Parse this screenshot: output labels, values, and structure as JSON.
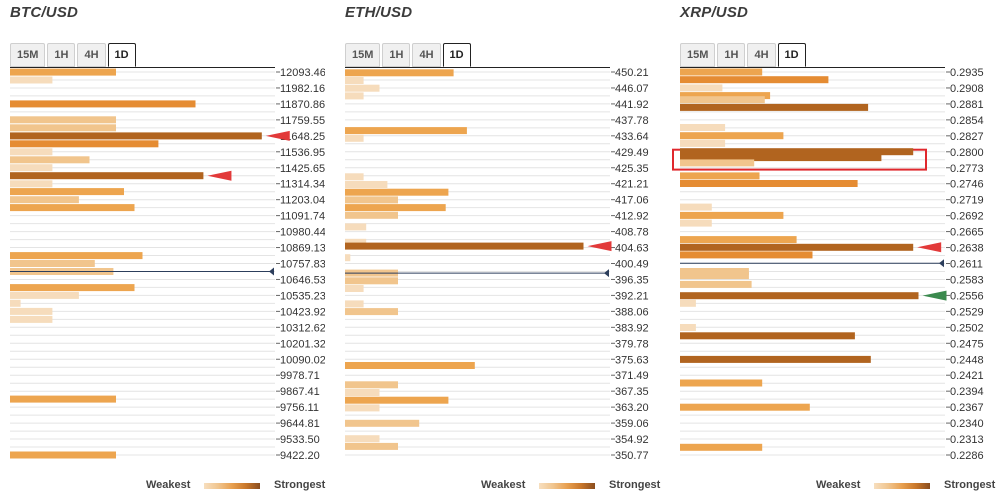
{
  "legend": {
    "weakest": "Weakest",
    "strongest": "Strongest"
  },
  "colors": {
    "c1": "#f6dcbc",
    "c2": "#f1c58d",
    "c3": "#eda54f",
    "c4": "#e58c33",
    "c5": "#b1641f",
    "red_marker": "#e23a3a",
    "green_marker": "#3b8a4e",
    "navy_marker": "#2c3e5c",
    "highlight": "#e0282d"
  },
  "chart_data": [
    {
      "type": "bar",
      "title": "BTC/USD",
      "timeframes": [
        "15M",
        "1H",
        "4H",
        "1D"
      ],
      "active_timeframe": "1D",
      "price_levels": [
        "12093.46",
        "11982.16",
        "11870.86",
        "11759.55",
        "11648.25",
        "11536.95",
        "11425.65",
        "11314.34",
        "11203.04",
        "11091.74",
        "10980.44",
        "10869.13",
        "10757.83",
        "10646.53",
        "10535.23",
        "10423.92",
        "10312.62",
        "10201.32",
        "10090.02",
        "9978.71",
        "9867.41",
        "9756.11",
        "9644.81",
        "9533.50",
        "9422.20"
      ],
      "strength_scale": [
        0,
        100
      ],
      "bars": [
        {
          "level": 12093,
          "value": 40,
          "tier": 3
        },
        {
          "level": 12038,
          "value": 16,
          "tier": 1
        },
        {
          "level": 11871,
          "value": 70,
          "tier": 4
        },
        {
          "level": 11760,
          "value": 40,
          "tier": 2
        },
        {
          "level": 11704,
          "value": 40,
          "tier": 2
        },
        {
          "level": 11648,
          "value": 95,
          "tier": 5
        },
        {
          "level": 11593,
          "value": 56,
          "tier": 4
        },
        {
          "level": 11537,
          "value": 16,
          "tier": 1
        },
        {
          "level": 11481,
          "value": 30,
          "tier": 2
        },
        {
          "level": 11426,
          "value": 16,
          "tier": 1
        },
        {
          "level": 11370,
          "value": 73,
          "tier": 5
        },
        {
          "level": 11314,
          "value": 16,
          "tier": 1
        },
        {
          "level": 11259,
          "value": 43,
          "tier": 3
        },
        {
          "level": 11203,
          "value": 26,
          "tier": 2
        },
        {
          "level": 11148,
          "value": 47,
          "tier": 3
        },
        {
          "level": 10813,
          "value": 50,
          "tier": 3
        },
        {
          "level": 10758,
          "value": 32,
          "tier": 2
        },
        {
          "level": 10702,
          "value": 39,
          "tier": 2
        },
        {
          "level": 10590,
          "value": 47,
          "tier": 3
        },
        {
          "level": 10535,
          "value": 26,
          "tier": 1
        },
        {
          "level": 10480,
          "value": 4,
          "tier": 1
        },
        {
          "level": 10424,
          "value": 16,
          "tier": 1
        },
        {
          "level": 10368,
          "value": 16,
          "tier": 1
        },
        {
          "level": 9812,
          "value": 40,
          "tier": 3
        },
        {
          "level": 9422,
          "value": 40,
          "tier": 3
        }
      ],
      "markers": [
        {
          "level": 11648,
          "type": "red-arrow"
        },
        {
          "level": 11370,
          "type": "red-arrow"
        },
        {
          "level": 10702,
          "type": "current-price"
        }
      ]
    },
    {
      "type": "bar",
      "title": "ETH/USD",
      "timeframes": [
        "15M",
        "1H",
        "4H",
        "1D"
      ],
      "active_timeframe": "1D",
      "price_levels": [
        "450.21",
        "446.07",
        "441.92",
        "437.78",
        "433.64",
        "429.49",
        "425.35",
        "421.21",
        "417.06",
        "412.92",
        "408.78",
        "404.63",
        "400.49",
        "396.35",
        "392.21",
        "388.06",
        "383.92",
        "379.78",
        "375.63",
        "371.49",
        "367.35",
        "363.20",
        "359.06",
        "354.92",
        "350.77"
      ],
      "strength_scale": [
        0,
        100
      ],
      "bars": [
        {
          "level": 450,
          "value": 41,
          "tier": 3
        },
        {
          "level": 448,
          "value": 7,
          "tier": 1
        },
        {
          "level": 446,
          "value": 13,
          "tier": 1
        },
        {
          "level": 444,
          "value": 7,
          "tier": 1
        },
        {
          "level": 435,
          "value": 46,
          "tier": 3
        },
        {
          "level": 433,
          "value": 7,
          "tier": 1
        },
        {
          "level": 423,
          "value": 7,
          "tier": 1
        },
        {
          "level": 421,
          "value": 16,
          "tier": 1
        },
        {
          "level": 419,
          "value": 39,
          "tier": 3
        },
        {
          "level": 417,
          "value": 20,
          "tier": 2
        },
        {
          "level": 415,
          "value": 38,
          "tier": 3
        },
        {
          "level": 413,
          "value": 20,
          "tier": 2
        },
        {
          "level": 410,
          "value": 8,
          "tier": 1
        },
        {
          "level": 406,
          "value": 8,
          "tier": 1
        },
        {
          "level": 405,
          "value": 90,
          "tier": 5
        },
        {
          "level": 402,
          "value": 2,
          "tier": 1
        },
        {
          "level": 398,
          "value": 20,
          "tier": 2
        },
        {
          "level": 396,
          "value": 20,
          "tier": 2
        },
        {
          "level": 394,
          "value": 7,
          "tier": 1
        },
        {
          "level": 390,
          "value": 7,
          "tier": 1
        },
        {
          "level": 388,
          "value": 20,
          "tier": 2
        },
        {
          "level": 374,
          "value": 49,
          "tier": 3
        },
        {
          "level": 369,
          "value": 20,
          "tier": 2
        },
        {
          "level": 367,
          "value": 13,
          "tier": 1
        },
        {
          "level": 365,
          "value": 39,
          "tier": 3
        },
        {
          "level": 363,
          "value": 13,
          "tier": 1
        },
        {
          "level": 359,
          "value": 28,
          "tier": 2
        },
        {
          "level": 355,
          "value": 13,
          "tier": 1
        },
        {
          "level": 353,
          "value": 20,
          "tier": 2
        }
      ],
      "markers": [
        {
          "level": 405,
          "type": "red-arrow"
        },
        {
          "level": 398,
          "type": "current-price"
        }
      ]
    },
    {
      "type": "bar",
      "title": "XRP/USD",
      "timeframes": [
        "15M",
        "1H",
        "4H",
        "1D"
      ],
      "active_timeframe": "1D",
      "price_levels": [
        "0.2935",
        "0.2908",
        "0.2881",
        "0.2854",
        "0.2827",
        "0.2800",
        "0.2773",
        "0.2746",
        "0.2719",
        "0.2692",
        "0.2665",
        "0.2638",
        "0.2611",
        "0.2583",
        "0.2556",
        "0.2529",
        "0.2502",
        "0.2475",
        "0.2448",
        "0.2421",
        "0.2394",
        "0.2367",
        "0.2340",
        "0.2313",
        "0.2286"
      ],
      "strength_scale": [
        0,
        100
      ],
      "highlight_range": {
        "from": 0.2773,
        "to": 0.28
      },
      "bars": [
        {
          "level": 0.2935,
          "value": 31,
          "tier": 3
        },
        {
          "level": 0.2922,
          "value": 56,
          "tier": 4
        },
        {
          "level": 0.2908,
          "value": 16,
          "tier": 1
        },
        {
          "level": 0.2895,
          "value": 34,
          "tier": 3
        },
        {
          "level": 0.2888,
          "value": 32,
          "tier": 2
        },
        {
          "level": 0.2875,
          "value": 71,
          "tier": 5
        },
        {
          "level": 0.2841,
          "value": 17,
          "tier": 1
        },
        {
          "level": 0.2827,
          "value": 39,
          "tier": 3
        },
        {
          "level": 0.2814,
          "value": 17,
          "tier": 1
        },
        {
          "level": 0.28,
          "value": 88,
          "tier": 5
        },
        {
          "level": 0.279,
          "value": 76,
          "tier": 5
        },
        {
          "level": 0.2781,
          "value": 28,
          "tier": 2
        },
        {
          "level": 0.2759,
          "value": 30,
          "tier": 3
        },
        {
          "level": 0.2746,
          "value": 67,
          "tier": 4
        },
        {
          "level": 0.2706,
          "value": 12,
          "tier": 1
        },
        {
          "level": 0.2692,
          "value": 39,
          "tier": 3
        },
        {
          "level": 0.2679,
          "value": 12,
          "tier": 1
        },
        {
          "level": 0.2651,
          "value": 44,
          "tier": 3
        },
        {
          "level": 0.2638,
          "value": 88,
          "tier": 5
        },
        {
          "level": 0.2625,
          "value": 50,
          "tier": 4
        },
        {
          "level": 0.2597,
          "value": 26,
          "tier": 2
        },
        {
          "level": 0.259,
          "value": 26,
          "tier": 2
        },
        {
          "level": 0.2575,
          "value": 27,
          "tier": 2
        },
        {
          "level": 0.2556,
          "value": 90,
          "tier": 5
        },
        {
          "level": 0.2543,
          "value": 6,
          "tier": 1
        },
        {
          "level": 0.2502,
          "value": 6,
          "tier": 1
        },
        {
          "level": 0.2488,
          "value": 66,
          "tier": 5
        },
        {
          "level": 0.2448,
          "value": 72,
          "tier": 5
        },
        {
          "level": 0.2408,
          "value": 31,
          "tier": 3
        },
        {
          "level": 0.2367,
          "value": 49,
          "tier": 3
        },
        {
          "level": 0.2299,
          "value": 31,
          "tier": 3
        }
      ],
      "markers": [
        {
          "level": 0.2638,
          "type": "red-arrow"
        },
        {
          "level": 0.2611,
          "type": "current-price"
        },
        {
          "level": 0.2556,
          "type": "green-arrow"
        }
      ]
    }
  ]
}
